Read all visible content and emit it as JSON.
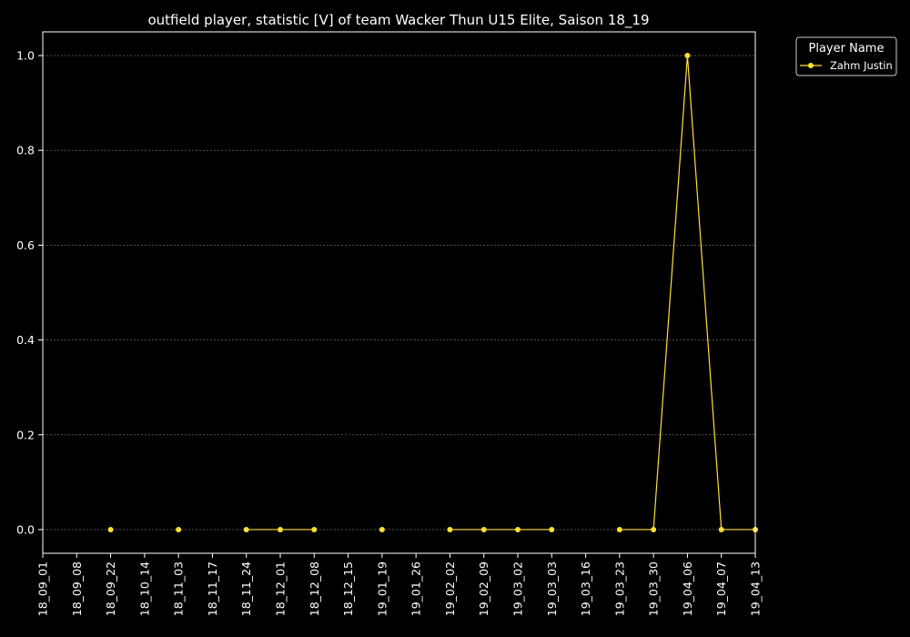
{
  "chart_data": {
    "type": "line",
    "title": "outfield player, statistic [V] of team Wacker Thun U15 Elite, Saison 18_19",
    "xlabel": "",
    "ylabel": "",
    "x_ticks": [
      "18_09_01",
      "18_09_08",
      "18_09_22",
      "18_10_14",
      "18_11_03",
      "18_11_17",
      "18_11_24",
      "18_12_01",
      "18_12_08",
      "18_12_15",
      "19_01_19",
      "19_01_26",
      "19_02_02",
      "19_02_09",
      "19_03_02",
      "19_03_03",
      "19_03_16",
      "19_03_23",
      "19_03_30",
      "19_04_06",
      "19_04_07",
      "19_04_13"
    ],
    "y_ticks": [
      "0.0",
      "0.2",
      "0.4",
      "0.6",
      "0.8",
      "1.0"
    ],
    "ylim": [
      -0.05,
      1.05
    ],
    "grid": true,
    "legend": {
      "title": "Player Name",
      "placement": "upper right, outside plot"
    },
    "series": [
      {
        "name": "Zahm Justin",
        "color": "#ffe033",
        "marker": "circle",
        "x": [
          "18_09_01",
          "18_09_08",
          "18_09_22",
          "18_10_14",
          "18_11_03",
          "18_11_17",
          "18_11_24",
          "18_12_01",
          "18_12_08",
          "18_12_15",
          "19_01_19",
          "19_01_26",
          "19_02_02",
          "19_02_09",
          "19_03_02",
          "19_03_03",
          "19_03_16",
          "19_03_23",
          "19_03_30",
          "19_04_06",
          "19_04_07",
          "19_04_13"
        ],
        "values": [
          null,
          null,
          0,
          null,
          0,
          null,
          0,
          0,
          0,
          null,
          0,
          null,
          0,
          0,
          0,
          0,
          null,
          0,
          0,
          1,
          0,
          0
        ]
      }
    ]
  }
}
